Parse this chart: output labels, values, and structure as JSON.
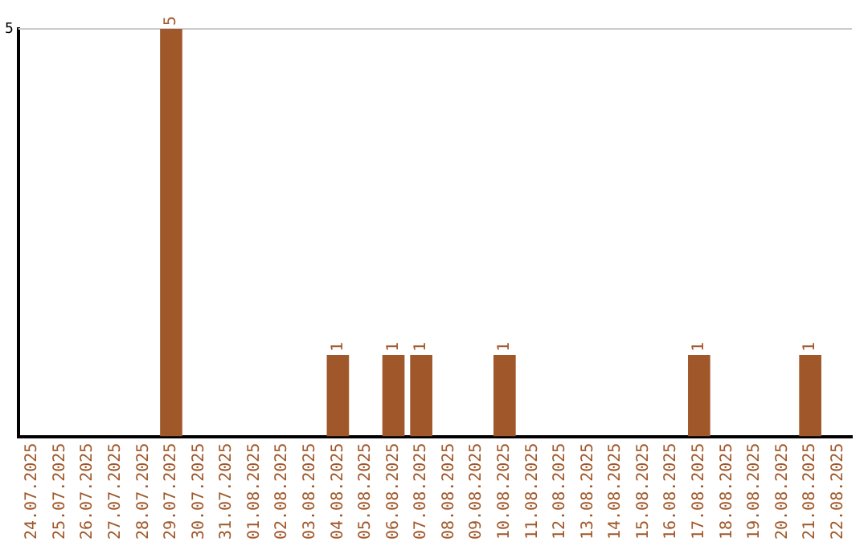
{
  "chart_data": {
    "type": "bar",
    "categories": [
      "24.07.2025",
      "25.07.2025",
      "26.07.2025",
      "27.07.2025",
      "28.07.2025",
      "29.07.2025",
      "30.07.2025",
      "31.07.2025",
      "01.08.2025",
      "02.08.2025",
      "03.08.2025",
      "04.08.2025",
      "05.08.2025",
      "06.08.2025",
      "07.08.2025",
      "08.08.2025",
      "09.08.2025",
      "10.08.2025",
      "11.08.2025",
      "12.08.2025",
      "13.08.2025",
      "14.08.2025",
      "15.08.2025",
      "16.08.2025",
      "17.08.2025",
      "18.08.2025",
      "19.08.2025",
      "20.08.2025",
      "21.08.2025",
      "22.08.2025"
    ],
    "values": [
      0,
      0,
      0,
      0,
      0,
      5,
      0,
      0,
      0,
      0,
      0,
      1,
      0,
      1,
      1,
      0,
      0,
      1,
      0,
      0,
      0,
      0,
      0,
      0,
      1,
      0,
      0,
      0,
      1,
      0
    ],
    "value_labels": [
      null,
      null,
      null,
      null,
      null,
      "5",
      null,
      null,
      null,
      null,
      null,
      "1",
      null,
      "1",
      "1",
      null,
      null,
      "1",
      null,
      null,
      null,
      null,
      null,
      null,
      "1",
      null,
      null,
      null,
      "1",
      null
    ],
    "color": "#a0582a",
    "ylim": [
      0,
      5
    ],
    "yticks": [
      5
    ],
    "ref_lines": [
      {
        "axis": "y",
        "value": 5,
        "color": "#cccccc"
      }
    ]
  }
}
